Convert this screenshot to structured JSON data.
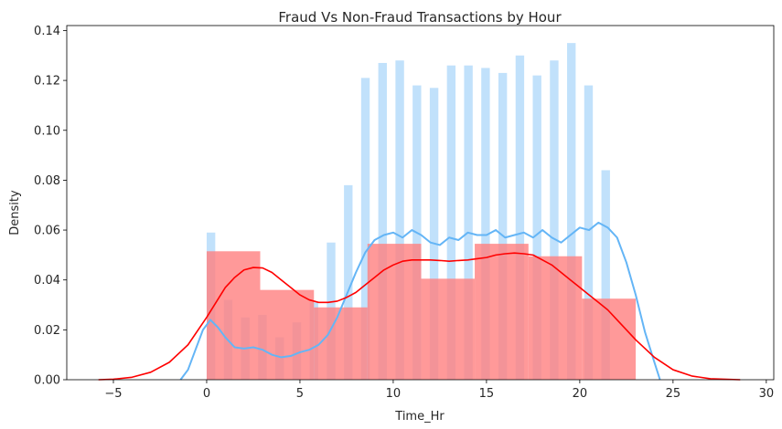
{
  "chart_data": {
    "type": "histogram+kde",
    "title": "Fraud Vs Non-Fraud Transactions by Hour",
    "xlabel": "Time_Hr",
    "ylabel": "Density",
    "xlim": [
      -7.5,
      30.4
    ],
    "ylim": [
      0,
      0.142
    ],
    "x_ticks": [
      -5,
      0,
      5,
      10,
      15,
      20,
      25,
      30
    ],
    "y_ticks": [
      0.0,
      0.02,
      0.04,
      0.06,
      0.08,
      0.1,
      0.12,
      0.14
    ],
    "y_tick_labels": [
      "0.00",
      "0.02",
      "0.04",
      "0.06",
      "0.08",
      "0.10",
      "0.12",
      "0.14"
    ],
    "grid": false,
    "series": [
      {
        "color": "#64b5f6",
        "bar_width": 0.46,
        "histogram": [
          {
            "x": 0.23,
            "density": 0.059
          },
          {
            "x": 1.15,
            "density": 0.032
          },
          {
            "x": 2.07,
            "density": 0.025
          },
          {
            "x": 2.99,
            "density": 0.026
          },
          {
            "x": 3.91,
            "density": 0.017
          },
          {
            "x": 4.83,
            "density": 0.023
          },
          {
            "x": 5.75,
            "density": 0.031
          },
          {
            "x": 6.67,
            "density": 0.055
          },
          {
            "x": 7.59,
            "density": 0.078
          },
          {
            "x": 8.51,
            "density": 0.121
          },
          {
            "x": 9.43,
            "density": 0.127
          },
          {
            "x": 10.35,
            "density": 0.128
          },
          {
            "x": 11.27,
            "density": 0.118
          },
          {
            "x": 12.19,
            "density": 0.117
          },
          {
            "x": 13.11,
            "density": 0.126
          },
          {
            "x": 14.03,
            "density": 0.126
          },
          {
            "x": 14.95,
            "density": 0.125
          },
          {
            "x": 15.87,
            "density": 0.123
          },
          {
            "x": 16.79,
            "density": 0.13
          },
          {
            "x": 17.71,
            "density": 0.122
          },
          {
            "x": 18.63,
            "density": 0.128
          },
          {
            "x": 19.55,
            "density": 0.135
          },
          {
            "x": 20.47,
            "density": 0.118
          },
          {
            "x": 21.39,
            "density": 0.084
          }
        ],
        "kde": [
          [
            -1.4,
            0.0
          ],
          [
            -1.0,
            0.004
          ],
          [
            -0.6,
            0.012
          ],
          [
            -0.2,
            0.02
          ],
          [
            0.2,
            0.024
          ],
          [
            0.6,
            0.021
          ],
          [
            1.0,
            0.017
          ],
          [
            1.5,
            0.013
          ],
          [
            2.0,
            0.0125
          ],
          [
            2.5,
            0.013
          ],
          [
            3.0,
            0.012
          ],
          [
            3.5,
            0.01
          ],
          [
            4.0,
            0.009
          ],
          [
            4.5,
            0.0095
          ],
          [
            5.0,
            0.011
          ],
          [
            5.5,
            0.012
          ],
          [
            6.0,
            0.014
          ],
          [
            6.5,
            0.018
          ],
          [
            7.0,
            0.025
          ],
          [
            7.5,
            0.034
          ],
          [
            8.0,
            0.043
          ],
          [
            8.5,
            0.051
          ],
          [
            9.0,
            0.056
          ],
          [
            9.5,
            0.058
          ],
          [
            10.0,
            0.059
          ],
          [
            10.5,
            0.057
          ],
          [
            11.0,
            0.06
          ],
          [
            11.5,
            0.058
          ],
          [
            12.0,
            0.055
          ],
          [
            12.5,
            0.054
          ],
          [
            13.0,
            0.057
          ],
          [
            13.5,
            0.056
          ],
          [
            14.0,
            0.059
          ],
          [
            14.5,
            0.058
          ],
          [
            15.0,
            0.058
          ],
          [
            15.5,
            0.06
          ],
          [
            16.0,
            0.057
          ],
          [
            16.5,
            0.058
          ],
          [
            17.0,
            0.059
          ],
          [
            17.5,
            0.057
          ],
          [
            18.0,
            0.06
          ],
          [
            18.5,
            0.057
          ],
          [
            19.0,
            0.055
          ],
          [
            19.5,
            0.058
          ],
          [
            20.0,
            0.061
          ],
          [
            20.5,
            0.06
          ],
          [
            21.0,
            0.063
          ],
          [
            21.5,
            0.061
          ],
          [
            22.0,
            0.057
          ],
          [
            22.5,
            0.047
          ],
          [
            23.0,
            0.034
          ],
          [
            23.5,
            0.019
          ],
          [
            24.0,
            0.007
          ],
          [
            24.3,
            0.0
          ]
        ]
      },
      {
        "color": "#ff0000",
        "bar_color": "#ff8080",
        "histogram": [
          {
            "x0": 0.0,
            "x1": 2.87,
            "density": 0.0515
          },
          {
            "x0": 2.87,
            "x1": 5.75,
            "density": 0.036
          },
          {
            "x0": 5.75,
            "x1": 8.62,
            "density": 0.029
          },
          {
            "x0": 8.62,
            "x1": 11.5,
            "density": 0.0545
          },
          {
            "x0": 11.5,
            "x1": 14.37,
            "density": 0.0405
          },
          {
            "x0": 14.37,
            "x1": 17.25,
            "density": 0.0545
          },
          {
            "x0": 17.25,
            "x1": 20.12,
            "density": 0.0495
          },
          {
            "x0": 20.12,
            "x1": 23.0,
            "density": 0.0325
          }
        ],
        "kde": [
          [
            -5.8,
            0.0
          ],
          [
            -5.0,
            0.0002
          ],
          [
            -4.0,
            0.001
          ],
          [
            -3.0,
            0.003
          ],
          [
            -2.0,
            0.007
          ],
          [
            -1.0,
            0.014
          ],
          [
            0.0,
            0.025
          ],
          [
            0.5,
            0.031
          ],
          [
            1.0,
            0.037
          ],
          [
            1.5,
            0.041
          ],
          [
            2.0,
            0.044
          ],
          [
            2.5,
            0.045
          ],
          [
            3.0,
            0.0448
          ],
          [
            3.5,
            0.043
          ],
          [
            4.0,
            0.04
          ],
          [
            4.5,
            0.037
          ],
          [
            5.0,
            0.034
          ],
          [
            5.5,
            0.032
          ],
          [
            6.0,
            0.031
          ],
          [
            6.5,
            0.031
          ],
          [
            7.0,
            0.0315
          ],
          [
            7.5,
            0.033
          ],
          [
            8.0,
            0.035
          ],
          [
            8.5,
            0.038
          ],
          [
            9.0,
            0.041
          ],
          [
            9.5,
            0.044
          ],
          [
            10.0,
            0.046
          ],
          [
            10.5,
            0.0475
          ],
          [
            11.0,
            0.048
          ],
          [
            11.5,
            0.048
          ],
          [
            12.0,
            0.048
          ],
          [
            12.5,
            0.0478
          ],
          [
            13.0,
            0.0475
          ],
          [
            13.5,
            0.0478
          ],
          [
            14.0,
            0.048
          ],
          [
            14.5,
            0.0485
          ],
          [
            15.0,
            0.049
          ],
          [
            15.5,
            0.05
          ],
          [
            16.0,
            0.0505
          ],
          [
            16.5,
            0.0508
          ],
          [
            17.0,
            0.0505
          ],
          [
            17.5,
            0.05
          ],
          [
            18.0,
            0.048
          ],
          [
            18.5,
            0.046
          ],
          [
            19.0,
            0.043
          ],
          [
            19.5,
            0.04
          ],
          [
            20.0,
            0.037
          ],
          [
            20.5,
            0.034
          ],
          [
            21.0,
            0.031
          ],
          [
            21.5,
            0.028
          ],
          [
            22.0,
            0.024
          ],
          [
            23.0,
            0.016
          ],
          [
            24.0,
            0.009
          ],
          [
            25.0,
            0.004
          ],
          [
            26.0,
            0.0015
          ],
          [
            27.0,
            0.0004
          ],
          [
            28.6,
            0.0
          ]
        ]
      }
    ]
  }
}
